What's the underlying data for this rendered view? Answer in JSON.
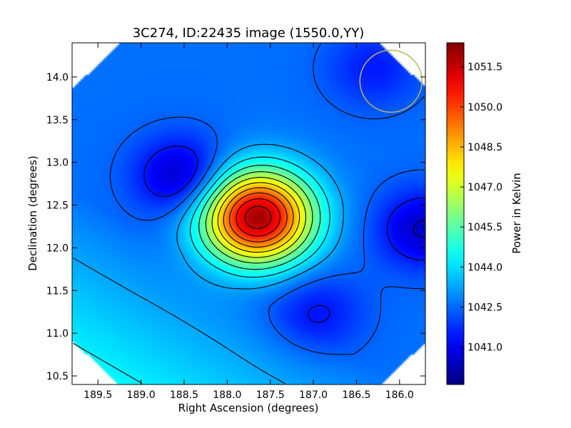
{
  "chart_data": {
    "type": "heatmap",
    "title": "3C274, ID:22435 image (1550.0,YY)",
    "xlabel": "Right Ascension (degrees)",
    "ylabel": "Declination (degrees)",
    "colorbar_label": "Power in Kelvin",
    "xlim": [
      189.8,
      185.7
    ],
    "ylim": [
      10.4,
      14.4
    ],
    "xticks": [
      189.5,
      189.0,
      188.5,
      188.0,
      187.5,
      187.0,
      186.5,
      186.0
    ],
    "xtick_labels": [
      "189.5",
      "189.0",
      "188.5",
      "188.0",
      "187.5",
      "187.0",
      "186.5",
      "186.0"
    ],
    "yticks": [
      10.5,
      11.0,
      11.5,
      12.0,
      12.5,
      13.0,
      13.5,
      14.0
    ],
    "ytick_labels": [
      "10.5",
      "11.0",
      "11.5",
      "12.0",
      "12.5",
      "13.0",
      "13.5",
      "14.0"
    ],
    "colorbar_range": [
      1039.6,
      1052.4
    ],
    "colorbar_ticks": [
      1041.0,
      1042.5,
      1044.0,
      1045.5,
      1047.0,
      1048.5,
      1050.0,
      1051.5
    ],
    "colorbar_tick_labels": [
      "1041.0",
      "1042.5",
      "1044.0",
      "1045.5",
      "1047.0",
      "1048.5",
      "1050.0",
      "1051.5"
    ],
    "colormap": "jet",
    "contour_color": "#000000",
    "field_shape": "octagon",
    "sources": [
      {
        "ra": 187.65,
        "dec": 12.36,
        "peak": 1052.0,
        "kind": "maximum"
      },
      {
        "ra": 188.52,
        "dec": 12.83,
        "peak": 1040.3,
        "kind": "minimum"
      },
      {
        "ra": 185.72,
        "dec": 12.22,
        "peak": 1040.5,
        "kind": "minimum"
      },
      {
        "ra": 186.95,
        "dec": 11.25,
        "peak": 1041.4,
        "kind": "minimum"
      },
      {
        "ra": 186.3,
        "dec": 14.1,
        "peak": 1041.5,
        "kind": "minimum"
      }
    ],
    "background_gradient": {
      "low_corner": "bottom-left",
      "value_bottom_left": 1045.0,
      "value_typical": 1042.6
    },
    "beam_circle": {
      "ra": 186.1,
      "dec": 13.95,
      "radius_deg": 0.36,
      "color": "#b5b55a"
    }
  }
}
